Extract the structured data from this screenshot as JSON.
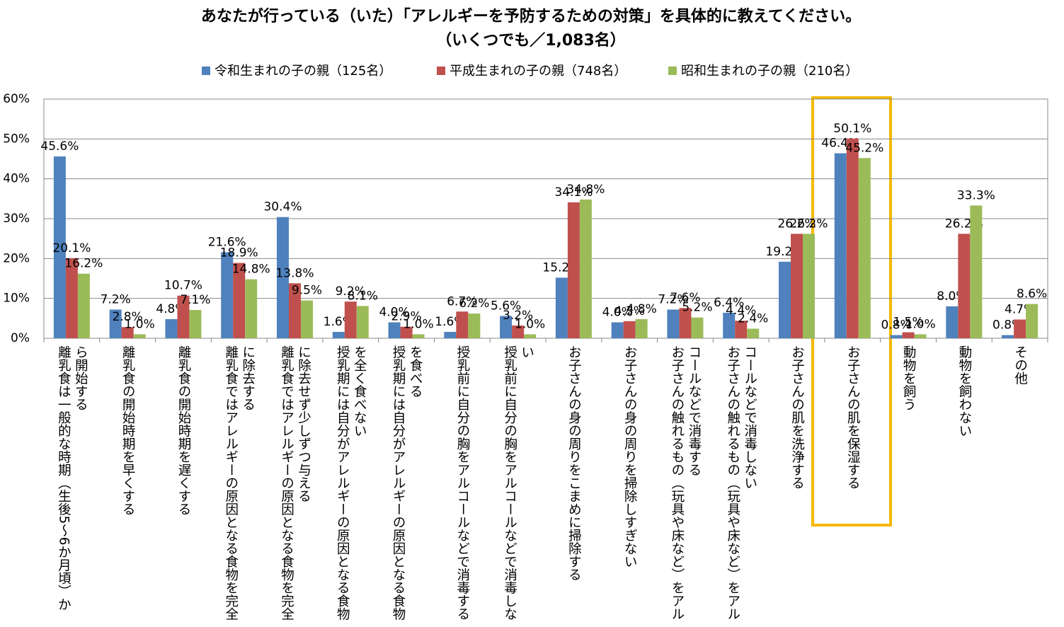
{
  "chart_data": {
    "type": "bar",
    "title": "あなたが行っている（いた）「アレルギーを予防するための対策」を具体的に教えてください。",
    "subtitle": "（いくつでも／1,083名）",
    "categories": [
      "離乳食は一般的な時期（生後5～6か月頃）から開始する",
      "離乳食の開始時期を早くする",
      "離乳食の開始時期を遅くする",
      "離乳食ではアレルギーの原因となる食物を完全に除去する",
      "離乳食ではアレルギーの原因となる食物を完全に除去せず少しずつ与える",
      "授乳期には自分がアレルギーの原因となる食物を全く食べない",
      "授乳期には自分がアレルギーの原因となる食物を食べる",
      "授乳前に自分の胸をアルコールなどで消毒する",
      "授乳前に自分の胸をアルコールなどで消毒しない",
      "お子さんの身の周りをこまめに掃除する",
      "お子さんの身の周りを掃除しすぎない",
      "お子さんの触れるもの（玩具や床など）をアルコールなどで消毒する",
      "お子さんの触れるもの（玩具や床など）をアルコールなどで消毒しない",
      "お子さんの肌を洗浄する",
      "お子さんの肌を保湿する",
      "動物を飼う",
      "動物を飼わない",
      "その他"
    ],
    "series": [
      {
        "name": "令和生まれの子の親（125名）",
        "color": "#4f81bd",
        "values": [
          45.6,
          7.2,
          4.8,
          21.6,
          30.4,
          1.6,
          4.0,
          1.6,
          5.6,
          15.2,
          4.0,
          7.2,
          6.4,
          19.2,
          46.4,
          0.8,
          8.0,
          0.8
        ],
        "value_labels": [
          "45.6%",
          "7.2%",
          "4.8%",
          "21.6%",
          "30.4%",
          "1.6%",
          "4.0%",
          "1.6%",
          "5.6%",
          "15.2%",
          "4.0%",
          "7.2%",
          "6.4%",
          "19.2%",
          "46.4%",
          "0.8%",
          "8.0%",
          "0.8%"
        ]
      },
      {
        "name": "平成生まれの子の親（748名）",
        "color": "#c0504d",
        "values": [
          20.1,
          2.8,
          10.7,
          18.9,
          13.8,
          9.2,
          2.9,
          6.7,
          3.2,
          34.1,
          4.3,
          7.6,
          4.4,
          26.2,
          50.1,
          1.5,
          26.2,
          4.7
        ],
        "value_labels": [
          "20.1%",
          "2.8%",
          "10.7%",
          "18.9%",
          "13.8%",
          "9.2%",
          "2.9%",
          "6.7%",
          "3.2%",
          "34.1%",
          "4.3%",
          "7.6%",
          "4.4%",
          "26.2%",
          "50.1%",
          "1.5%",
          "26.2%",
          "4.7%"
        ]
      },
      {
        "name": "昭和生まれの子の親（210名）",
        "color": "#9bbb59",
        "values": [
          16.2,
          1.0,
          7.1,
          14.8,
          9.5,
          8.1,
          1.0,
          6.2,
          1.0,
          34.8,
          4.8,
          5.2,
          2.4,
          26.2,
          45.2,
          1.0,
          33.3,
          8.6
        ],
        "value_labels": [
          "16.2%",
          "1.0%",
          "7.1%",
          "14.8%",
          "9.5%",
          "8.1%",
          "1.0%",
          "6.2%",
          "1.0%",
          "34.8%",
          "4.8%",
          "5.2%",
          "2.4%",
          "26.2%",
          "45.2%",
          "1.0%",
          "33.3%",
          "8.6%"
        ]
      }
    ],
    "ylim": [
      0,
      60
    ],
    "yticks": [
      {
        "value": 0,
        "label": "0%"
      },
      {
        "value": 10,
        "label": "10%"
      },
      {
        "value": 20,
        "label": "20%"
      },
      {
        "value": 30,
        "label": "30%"
      },
      {
        "value": 40,
        "label": "40%"
      },
      {
        "value": 50,
        "label": "50%"
      },
      {
        "value": 60,
        "label": "60%"
      }
    ],
    "grid": true,
    "legend": "top"
  }
}
